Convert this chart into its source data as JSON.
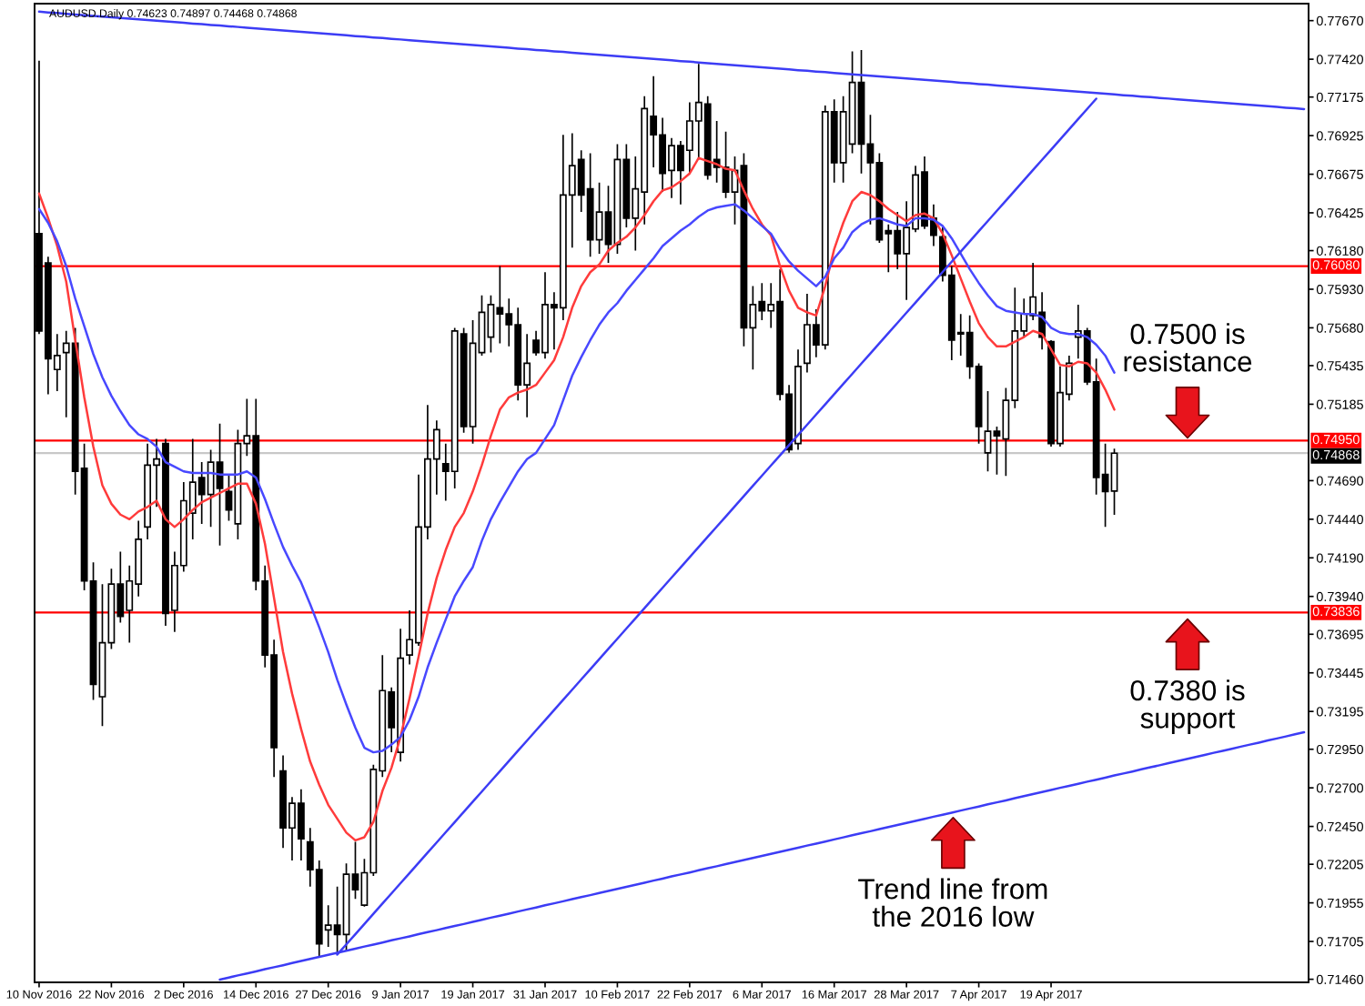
{
  "chart_data": {
    "type": "candlestick",
    "title": "AUDUSD.Daily 0.74623 0.74897 0.74468 0.74868",
    "categories": [
      "10 Nov 2016",
      null,
      null,
      null,
      null,
      null,
      null,
      null,
      "22 Nov 2016",
      null,
      null,
      null,
      null,
      null,
      null,
      null,
      "2 Dec 2016",
      null,
      null,
      null,
      null,
      null,
      null,
      null,
      "14 Dec 2016",
      null,
      null,
      null,
      null,
      null,
      null,
      null,
      "27 Dec 2016",
      null,
      null,
      null,
      null,
      null,
      null,
      null,
      "9 Jan 2017",
      null,
      null,
      null,
      null,
      null,
      null,
      null,
      "19 Jan 2017",
      null,
      null,
      null,
      null,
      null,
      null,
      null,
      "31 Jan 2017",
      null,
      null,
      null,
      null,
      null,
      null,
      null,
      "10 Feb 2017",
      null,
      null,
      null,
      null,
      null,
      null,
      null,
      "22 Feb 2017",
      null,
      null,
      null,
      null,
      null,
      null,
      null,
      "6 Mar 2017",
      null,
      null,
      null,
      null,
      null,
      null,
      null,
      "16 Mar 2017",
      null,
      null,
      null,
      null,
      null,
      null,
      null,
      "28 Mar 2017",
      null,
      null,
      null,
      null,
      null,
      null,
      null,
      "7 Apr 2017",
      null,
      null,
      null,
      null,
      null,
      null,
      null,
      "19 Apr 2017",
      null,
      null,
      null,
      null,
      null,
      null,
      null,
      null,
      null,
      null,
      null,
      null,
      null,
      null,
      null,
      null,
      null,
      null,
      null,
      null,
      null,
      null,
      null,
      null,
      null,
      null,
      null,
      null
    ],
    "ohlc": [
      [
        0.7629,
        0.7741,
        0.7564,
        0.7566
      ],
      [
        0.761,
        0.7614,
        0.7525,
        0.7548
      ],
      [
        0.7541,
        0.7564,
        0.7527,
        0.755
      ],
      [
        0.7552,
        0.7566,
        0.751,
        0.7558
      ],
      [
        0.7558,
        0.7568,
        0.746,
        0.7475
      ],
      [
        0.7477,
        0.7493,
        0.7398,
        0.7404
      ],
      [
        0.7404,
        0.7416,
        0.7327,
        0.7337
      ],
      [
        0.7329,
        0.7402,
        0.731,
        0.7364
      ],
      [
        0.7364,
        0.7412,
        0.736,
        0.7402
      ],
      [
        0.7402,
        0.7423,
        0.7377,
        0.7381
      ],
      [
        0.7385,
        0.7414,
        0.7364,
        0.7404
      ],
      [
        0.7402,
        0.7443,
        0.7394,
        0.7431
      ],
      [
        0.7439,
        0.7493,
        0.7431,
        0.7479
      ],
      [
        0.7479,
        0.7496,
        0.7452,
        0.7483
      ],
      [
        0.7493,
        0.7496,
        0.7375,
        0.7383
      ],
      [
        0.7385,
        0.7423,
        0.7371,
        0.7414
      ],
      [
        0.7414,
        0.7468,
        0.741,
        0.7456
      ],
      [
        0.7448,
        0.7496,
        0.7431,
        0.7468
      ],
      [
        0.7471,
        0.7481,
        0.7441,
        0.746
      ],
      [
        0.746,
        0.7489,
        0.7439,
        0.7481
      ],
      [
        0.7481,
        0.7506,
        0.7427,
        0.7464
      ],
      [
        0.7462,
        0.7473,
        0.7443,
        0.745
      ],
      [
        0.7441,
        0.7502,
        0.7431,
        0.7493
      ],
      [
        0.7493,
        0.7522,
        0.7485,
        0.7498
      ],
      [
        0.7498,
        0.7522,
        0.7398,
        0.7404
      ],
      [
        0.7404,
        0.7414,
        0.7348,
        0.7356
      ],
      [
        0.7356,
        0.7366,
        0.7277,
        0.7296
      ],
      [
        0.7281,
        0.7291,
        0.7231,
        0.7244
      ],
      [
        0.7244,
        0.7264,
        0.7223,
        0.726
      ],
      [
        0.726,
        0.7269,
        0.7223,
        0.7237
      ],
      [
        0.7235,
        0.7244,
        0.7206,
        0.7217
      ],
      [
        0.7217,
        0.7223,
        0.716,
        0.7169
      ],
      [
        0.7178,
        0.7194,
        0.7167,
        0.7181
      ],
      [
        0.7181,
        0.7206,
        0.7162,
        0.7175
      ],
      [
        0.7175,
        0.7221,
        0.7164,
        0.7214
      ],
      [
        0.7214,
        0.7235,
        0.7198,
        0.7204
      ],
      [
        0.7194,
        0.7224,
        0.7193,
        0.7215
      ],
      [
        0.7215,
        0.7285,
        0.7213,
        0.7282
      ],
      [
        0.7281,
        0.7356,
        0.7277,
        0.7333
      ],
      [
        0.7332,
        0.7335,
        0.7293,
        0.7309
      ],
      [
        0.7293,
        0.7373,
        0.7287,
        0.7354
      ],
      [
        0.7356,
        0.7385,
        0.735,
        0.7366
      ],
      [
        0.7364,
        0.7473,
        0.7362,
        0.7439
      ],
      [
        0.7439,
        0.7518,
        0.7431,
        0.7483
      ],
      [
        0.7483,
        0.7508,
        0.746,
        0.7502
      ],
      [
        0.748,
        0.7493,
        0.7456,
        0.7475
      ],
      [
        0.7475,
        0.7568,
        0.7464,
        0.7566
      ],
      [
        0.7564,
        0.7568,
        0.75,
        0.7504
      ],
      [
        0.7504,
        0.7573,
        0.7493,
        0.7558
      ],
      [
        0.7552,
        0.7589,
        0.755,
        0.7578
      ],
      [
        0.7562,
        0.7589,
        0.7552,
        0.7583
      ],
      [
        0.7581,
        0.7608,
        0.7558,
        0.7577
      ],
      [
        0.7577,
        0.7587,
        0.7556,
        0.757
      ],
      [
        0.757,
        0.7581,
        0.7521,
        0.7531
      ],
      [
        0.7531,
        0.7564,
        0.751,
        0.7545
      ],
      [
        0.756,
        0.7566,
        0.755,
        0.7552
      ],
      [
        0.7552,
        0.7604,
        0.7548,
        0.7583
      ],
      [
        0.7583,
        0.7591,
        0.7554,
        0.7581
      ],
      [
        0.7581,
        0.7693,
        0.7573,
        0.7654
      ],
      [
        0.7654,
        0.7694,
        0.762,
        0.7673
      ],
      [
        0.7677,
        0.7683,
        0.7643,
        0.7654
      ],
      [
        0.7658,
        0.7681,
        0.7614,
        0.7625
      ],
      [
        0.7625,
        0.7662,
        0.7616,
        0.7643
      ],
      [
        0.7643,
        0.766,
        0.761,
        0.7622
      ],
      [
        0.7622,
        0.7687,
        0.7616,
        0.7677
      ],
      [
        0.7677,
        0.7687,
        0.7633,
        0.7639
      ],
      [
        0.7639,
        0.7679,
        0.7618,
        0.7658
      ],
      [
        0.7656,
        0.7718,
        0.7635,
        0.771
      ],
      [
        0.7705,
        0.7731,
        0.7672,
        0.7693
      ],
      [
        0.7693,
        0.7704,
        0.7656,
        0.7668
      ],
      [
        0.767,
        0.7691,
        0.7652,
        0.7686
      ],
      [
        0.7686,
        0.7689,
        0.7648,
        0.767
      ],
      [
        0.7683,
        0.7714,
        0.7668,
        0.7702
      ],
      [
        0.7702,
        0.7739,
        0.7677,
        0.7714
      ],
      [
        0.7713,
        0.7718,
        0.7664,
        0.7667
      ],
      [
        0.7677,
        0.7702,
        0.7662,
        0.7672
      ],
      [
        0.7672,
        0.7695,
        0.7652,
        0.7656
      ],
      [
        0.7656,
        0.7679,
        0.7635,
        0.767
      ],
      [
        0.7673,
        0.7681,
        0.7556,
        0.7568
      ],
      [
        0.7568,
        0.7595,
        0.7541,
        0.7583
      ],
      [
        0.7585,
        0.7597,
        0.7573,
        0.7579
      ],
      [
        0.7579,
        0.7597,
        0.7568,
        0.7583
      ],
      [
        0.7585,
        0.7606,
        0.7521,
        0.7525
      ],
      [
        0.7525,
        0.7531,
        0.7487,
        0.7489
      ],
      [
        0.7493,
        0.7554,
        0.7489,
        0.7543
      ],
      [
        0.7545,
        0.759,
        0.7539,
        0.757
      ],
      [
        0.757,
        0.758,
        0.7549,
        0.7557
      ],
      [
        0.7557,
        0.7712,
        0.7554,
        0.7708
      ],
      [
        0.7708,
        0.7716,
        0.7662,
        0.7675
      ],
      [
        0.7675,
        0.7718,
        0.7662,
        0.7708
      ],
      [
        0.7687,
        0.7747,
        0.7681,
        0.7727
      ],
      [
        0.7727,
        0.7748,
        0.7668,
        0.7687
      ],
      [
        0.7687,
        0.7706,
        0.7635,
        0.7675
      ],
      [
        0.7675,
        0.7681,
        0.7623,
        0.7625
      ],
      [
        0.7631,
        0.7635,
        0.7604,
        0.7629
      ],
      [
        0.7631,
        0.7643,
        0.7606,
        0.7616
      ],
      [
        0.7616,
        0.765,
        0.7586,
        0.7633
      ],
      [
        0.7632,
        0.7673,
        0.763,
        0.7667
      ],
      [
        0.7669,
        0.7679,
        0.7632,
        0.7634
      ],
      [
        0.7639,
        0.7648,
        0.7621,
        0.7628
      ],
      [
        0.7627,
        0.7633,
        0.7598,
        0.7602
      ],
      [
        0.7602,
        0.7608,
        0.7547,
        0.756
      ],
      [
        0.7564,
        0.7577,
        0.755,
        0.7565
      ],
      [
        0.7565,
        0.7576,
        0.7535,
        0.7543
      ],
      [
        0.7543,
        0.7545,
        0.7493,
        0.7504
      ],
      [
        0.7487,
        0.7527,
        0.7475,
        0.7501
      ],
      [
        0.7501,
        0.7504,
        0.7473,
        0.7498
      ],
      [
        0.7496,
        0.7529,
        0.7472,
        0.7521
      ],
      [
        0.7521,
        0.7594,
        0.7516,
        0.7566
      ],
      [
        0.7566,
        0.7587,
        0.7562,
        0.7577
      ],
      [
        0.7576,
        0.761,
        0.7573,
        0.7588
      ],
      [
        0.7578,
        0.7591,
        0.7554,
        0.7562
      ],
      [
        0.7559,
        0.756,
        0.7491,
        0.7493
      ],
      [
        0.7493,
        0.7543,
        0.7491,
        0.7526
      ],
      [
        0.7525,
        0.755,
        0.7521,
        0.7545
      ],
      [
        0.7562,
        0.7583,
        0.7548,
        0.7566
      ],
      [
        0.7566,
        0.7568,
        0.7531,
        0.7533
      ],
      [
        0.7533,
        0.7548,
        0.746,
        0.7471
      ],
      [
        0.7473,
        0.7493,
        0.7439,
        0.7462
      ],
      [
        0.74623,
        0.74897,
        0.74468,
        0.74868
      ],
      null,
      null,
      null,
      null,
      null,
      null,
      null,
      null,
      null,
      null,
      null,
      null,
      null,
      null,
      null,
      null,
      null,
      null,
      null,
      null,
      null
    ],
    "ylim": [
      0.7144,
      0.7778
    ],
    "yticks": [
      {
        "value": 0.7146,
        "label": "0.71460"
      },
      0.71705,
      0.71955,
      0.72205,
      {
        "value": 0.7245,
        "label": "0.72450"
      },
      {
        "value": 0.727,
        "label": "0.72700"
      },
      {
        "value": 0.7295,
        "label": "0.72950"
      },
      0.73195,
      0.73445,
      0.73695,
      {
        "value": 0.7394,
        "label": "0.73940"
      },
      {
        "value": 0.7419,
        "label": "0.74190"
      },
      {
        "value": 0.7444,
        "label": "0.74440"
      },
      {
        "value": 0.7469,
        "label": "0.74690"
      },
      0.75185,
      0.75435,
      {
        "value": 0.7568,
        "label": "0.75680"
      },
      {
        "value": 0.7593,
        "label": "0.75930"
      },
      {
        "value": 0.7618,
        "label": "0.76180"
      },
      0.76425,
      0.76675,
      0.76925,
      0.77175,
      {
        "value": 0.7742,
        "label": "0.77420"
      },
      {
        "value": 0.7767,
        "label": "0.77670"
      }
    ],
    "series": [
      {
        "type": "line",
        "color": "#ff3b3b",
        "values": [
          0.7655,
          0.7639,
          0.7621,
          0.7598,
          0.756,
          0.7523,
          0.7491,
          0.7466,
          0.7454,
          0.7447,
          0.7444,
          0.7449,
          0.7452,
          0.7456,
          0.7444,
          0.7439,
          0.7444,
          0.745,
          0.7455,
          0.7458,
          0.7461,
          0.7464,
          0.7467,
          0.7467,
          0.7454,
          0.7428,
          0.7393,
          0.7358,
          0.7331,
          0.7308,
          0.7287,
          0.7272,
          0.7259,
          0.725,
          0.7241,
          0.7236,
          0.7238,
          0.7248,
          0.7268,
          0.7283,
          0.7303,
          0.7328,
          0.7355,
          0.7383,
          0.7406,
          0.7424,
          0.7439,
          0.7448,
          0.7462,
          0.7479,
          0.7498,
          0.7515,
          0.7523,
          0.7526,
          0.7528,
          0.7531,
          0.7539,
          0.7547,
          0.7562,
          0.7581,
          0.7595,
          0.7604,
          0.7609,
          0.7618,
          0.7623,
          0.7627,
          0.7633,
          0.7641,
          0.765,
          0.7657,
          0.7659,
          0.7663,
          0.7668,
          0.7678,
          0.7676,
          0.7674,
          0.7671,
          0.767,
          0.7657,
          0.7645,
          0.7635,
          0.7628,
          0.7608,
          0.7592,
          0.7581,
          0.7578,
          0.7576,
          0.7595,
          0.7619,
          0.7636,
          0.765,
          0.7656,
          0.7654,
          0.765,
          0.7645,
          0.7641,
          0.7637,
          0.7641,
          0.7642,
          0.7639,
          0.7629,
          0.7615,
          0.76,
          0.7585,
          0.7571,
          0.7562,
          0.7556,
          0.7556,
          0.7559,
          0.7562,
          0.7566,
          0.7564,
          0.7554,
          0.7544,
          0.7543,
          0.7546,
          0.7545,
          0.7539,
          0.7528,
          0.7515,
          null,
          null,
          null,
          null,
          null,
          null,
          null,
          null,
          null,
          null,
          null,
          null,
          null,
          null,
          null,
          null,
          null,
          null,
          null,
          null,
          null
        ]
      },
      {
        "type": "line",
        "color": "#4848ff",
        "values": [
          0.7645,
          0.7636,
          0.7624,
          0.7608,
          0.7587,
          0.7569,
          0.7551,
          0.7536,
          0.7524,
          0.7514,
          0.7505,
          0.7499,
          0.7496,
          0.7491,
          0.7481,
          0.7478,
          0.7475,
          0.7474,
          0.7474,
          0.7474,
          0.7473,
          0.7473,
          0.7473,
          0.7475,
          0.7471,
          0.7457,
          0.7441,
          0.7426,
          0.7414,
          0.7403,
          0.7389,
          0.7374,
          0.7358,
          0.734,
          0.7324,
          0.7309,
          0.7296,
          0.7293,
          0.7294,
          0.7298,
          0.7303,
          0.7314,
          0.7329,
          0.7348,
          0.7364,
          0.7379,
          0.7394,
          0.7404,
          0.7413,
          0.743,
          0.7444,
          0.7455,
          0.7465,
          0.7475,
          0.7483,
          0.7487,
          0.7496,
          0.7505,
          0.7521,
          0.7537,
          0.7549,
          0.756,
          0.757,
          0.7578,
          0.7584,
          0.7592,
          0.7599,
          0.7606,
          0.7613,
          0.7621,
          0.7626,
          0.7631,
          0.7635,
          0.764,
          0.7644,
          0.7646,
          0.7647,
          0.7648,
          0.7644,
          0.7639,
          0.7634,
          0.7629,
          0.7619,
          0.7611,
          0.7605,
          0.76,
          0.7595,
          0.7601,
          0.7613,
          0.762,
          0.763,
          0.7635,
          0.7638,
          0.7639,
          0.7637,
          0.7635,
          0.7634,
          0.7639,
          0.7639,
          0.7638,
          0.7634,
          0.7626,
          0.7616,
          0.7606,
          0.7597,
          0.7589,
          0.7582,
          0.7579,
          0.7578,
          0.7577,
          0.7577,
          0.7575,
          0.7568,
          0.7565,
          0.7564,
          0.7564,
          0.7562,
          0.7557,
          0.755,
          0.7539,
          null,
          null,
          null,
          null,
          null,
          null,
          null,
          null,
          null,
          null,
          null,
          null,
          null,
          null,
          null,
          null,
          null,
          null,
          null,
          null,
          null
        ]
      },
      {
        "type": "line",
        "color": "#3c3cf5",
        "values": [
          0.77728,
          0.77723,
          0.77719,
          0.77714,
          0.7771,
          0.77705,
          0.77701,
          0.77696,
          0.77692,
          0.77687,
          0.77683,
          0.77678,
          0.77674,
          0.77669,
          0.77665,
          0.7766,
          0.77656,
          0.77651,
          0.77647,
          0.77642,
          0.77638,
          0.77633,
          0.77629,
          0.77624,
          0.7762,
          0.77615,
          0.77611,
          0.77606,
          0.77602,
          0.77597,
          0.77593,
          0.77588,
          0.77584,
          0.77579,
          0.77575,
          0.7757,
          0.77566,
          0.77561,
          0.77557,
          0.77552,
          0.77548,
          0.77543,
          0.77539,
          0.77534,
          0.7753,
          0.77525,
          0.77521,
          0.77516,
          0.77512,
          0.77507,
          0.77503,
          0.77498,
          0.77494,
          0.77489,
          0.77485,
          0.7748,
          0.77476,
          0.77471,
          0.77467,
          0.77462,
          0.77458,
          0.77453,
          0.77449,
          0.77444,
          0.7744,
          0.77435,
          0.77431,
          0.77426,
          0.77422,
          0.77417,
          0.77413,
          0.77408,
          0.77404,
          0.77399,
          0.77394,
          0.7739,
          0.77385,
          0.77381,
          0.77376,
          0.77372,
          0.77367,
          0.77363,
          0.77358,
          0.77354,
          0.77349,
          0.77345,
          0.7734,
          0.77336,
          0.77331,
          0.77327,
          0.77322,
          0.77318,
          0.77313,
          0.77309,
          0.77304,
          0.773,
          0.77295,
          0.77291,
          0.77286,
          0.77282,
          0.77277,
          0.77273,
          0.77268,
          0.77264,
          0.77259,
          0.77255,
          0.7725,
          0.77246,
          0.77241,
          0.77237,
          0.77232,
          0.77228,
          0.77223,
          0.77219,
          0.77214,
          0.7721,
          0.77205,
          0.77201,
          0.77196,
          0.77192,
          0.77187,
          0.77183,
          0.77178,
          0.77174,
          0.77169,
          0.77165,
          0.7716,
          0.77156,
          0.77151,
          0.77147,
          0.77142,
          0.77138,
          0.77133,
          0.77129,
          0.77124,
          0.7712,
          0.77115,
          0.77111,
          0.77106,
          0.77102,
          0.77097
        ]
      },
      {
        "type": "line",
        "color": "#3c3cf5",
        "values": [
          null,
          null,
          null,
          null,
          null,
          null,
          null,
          null,
          null,
          null,
          null,
          null,
          null,
          null,
          null,
          null,
          null,
          null,
          null,
          null,
          null,
          null,
          null,
          null,
          null,
          null,
          null,
          null,
          null,
          null,
          null,
          null,
          null,
          0.7162,
          0.71686,
          0.71752,
          0.71818,
          0.71884,
          0.7195,
          0.72016,
          0.72082,
          0.72148,
          0.72214,
          0.7228,
          0.72346,
          0.72412,
          0.72478,
          0.72544,
          0.7261,
          0.72676,
          0.72742,
          0.72808,
          0.72874,
          0.7294,
          0.73006,
          0.73072,
          0.73138,
          0.73204,
          0.7327,
          0.73336,
          0.73402,
          0.73468,
          0.73534,
          0.736,
          0.73666,
          0.73732,
          0.73798,
          0.73864,
          0.7393,
          0.73996,
          0.74062,
          0.74128,
          0.74194,
          0.7426,
          0.74326,
          0.74392,
          0.74458,
          0.74524,
          0.7459,
          0.74656,
          0.74722,
          0.74788,
          0.74854,
          0.7492,
          0.74986,
          0.75052,
          0.75118,
          0.75184,
          0.7525,
          0.75316,
          0.75382,
          0.75448,
          0.75514,
          0.7558,
          0.75646,
          0.75712,
          0.75778,
          0.75844,
          0.7591,
          0.75976,
          0.76042,
          0.76108,
          0.76174,
          0.7624,
          0.76306,
          0.76372,
          0.76438,
          0.76504,
          0.7657,
          0.76636,
          0.76702,
          0.76768,
          0.76834,
          0.769,
          0.76966,
          0.77032,
          0.77098,
          0.77164,
          null,
          null,
          null,
          null,
          null,
          null,
          null,
          null,
          null,
          null,
          null,
          null,
          null,
          null,
          null,
          null,
          null,
          null,
          null,
          null,
          null,
          null,
          null
        ]
      },
      {
        "type": "line",
        "color": "#3c3cf5",
        "values": [
          null,
          null,
          null,
          null,
          null,
          null,
          null,
          null,
          null,
          null,
          null,
          null,
          null,
          null,
          null,
          null,
          null,
          null,
          null,
          null,
          0.71458,
          0.71471,
          0.71485,
          0.71498,
          0.71511,
          0.71525,
          0.71538,
          0.71551,
          0.71565,
          0.71578,
          0.71592,
          0.71605,
          0.71618,
          0.71632,
          0.71645,
          0.71658,
          0.71672,
          0.71685,
          0.71698,
          0.71712,
          0.71725,
          0.71738,
          0.71752,
          0.71765,
          0.71778,
          0.71792,
          0.71805,
          0.71818,
          0.71832,
          0.71845,
          0.71859,
          0.71872,
          0.71885,
          0.71899,
          0.71912,
          0.71925,
          0.71939,
          0.71952,
          0.71965,
          0.71979,
          0.71992,
          0.72005,
          0.72019,
          0.72032,
          0.72045,
          0.72059,
          0.72072,
          0.72085,
          0.72099,
          0.72112,
          0.72126,
          0.72139,
          0.72152,
          0.72166,
          0.72179,
          0.72192,
          0.72206,
          0.72219,
          0.72232,
          0.72246,
          0.72259,
          0.72272,
          0.72286,
          0.72299,
          0.72312,
          0.72326,
          0.72339,
          0.72352,
          0.72366,
          0.72379,
          0.72393,
          0.72406,
          0.72419,
          0.72433,
          0.72446,
          0.72459,
          0.72473,
          0.72486,
          0.72499,
          0.72513,
          0.72526,
          0.72539,
          0.72553,
          0.72566,
          0.72579,
          0.72593,
          0.72606,
          0.72619,
          0.72633,
          0.72646,
          0.7266,
          0.72673,
          0.72686,
          0.727,
          0.72713,
          0.72726,
          0.7274,
          0.72753,
          0.72766,
          0.7278,
          0.72793,
          0.72806,
          0.7282,
          0.72833,
          0.72846,
          0.7286,
          0.72873,
          0.72886,
          0.729,
          0.72913,
          0.72927,
          0.7294,
          0.72953,
          0.72967,
          0.7298,
          0.72993,
          0.73007,
          0.7302,
          0.73033,
          0.73047,
          0.7306
        ]
      }
    ],
    "ref_lines": [
      {
        "axis": "y",
        "value": 0.7608,
        "label": "0.76080",
        "color": "#ff0000"
      },
      {
        "axis": "y",
        "value": 0.7495,
        "label": "0.74950",
        "color": "#ff0000"
      },
      {
        "axis": "y",
        "value": 0.74868,
        "label": "0.74868",
        "color": "#c8c8c8"
      },
      {
        "axis": "y",
        "value": 0.73836,
        "label": "0.73836",
        "color": "#ff0000"
      }
    ],
    "annotations": [
      {
        "text": "0.7500 is\nresistance",
        "y": 0.7495
      },
      {
        "text": "0.7380 is\nsupport",
        "y": 0.7381
      },
      "Trend line from\nthe 2016 low"
    ]
  }
}
